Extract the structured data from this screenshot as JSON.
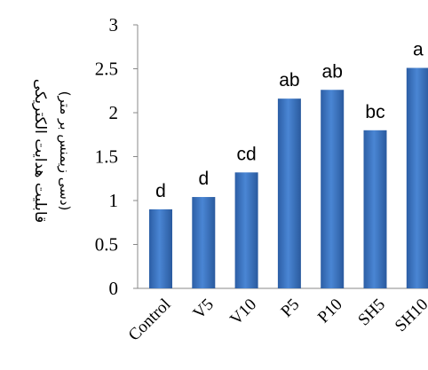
{
  "chart_data": {
    "type": "bar",
    "categories": [
      "Control",
      "V5",
      "V10",
      "P5",
      "P10",
      "SH5",
      "SH10"
    ],
    "values": [
      0.9,
      1.04,
      1.32,
      2.16,
      2.26,
      1.8,
      2.51
    ],
    "data_labels": [
      "d",
      "d",
      "cd",
      "ab",
      "ab",
      "bc",
      "a"
    ],
    "ylabel": "قابلیت هدایت الکتریکی",
    "ylabel_sub": "(دسی زیمنس بر متر)",
    "ylim": [
      0,
      3
    ],
    "yticks": [
      "0",
      "0.5",
      "1",
      "1.5",
      "2",
      "2.5",
      "3"
    ],
    "grid": false,
    "bar_color": "#3b73c0"
  }
}
